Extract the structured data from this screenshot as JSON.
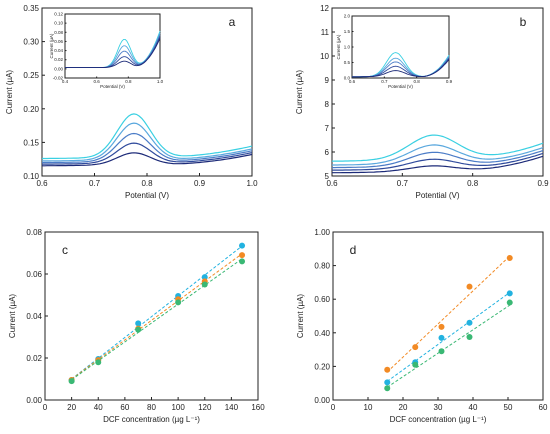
{
  "colors": {
    "axis": "#222222",
    "teal": "#1fb5a5",
    "cyan": "#22b2e0",
    "green": "#3ab874",
    "orange": "#f28a24",
    "voltammetry": [
      "#3ad0e2",
      "#5aa8de",
      "#4b7cc7",
      "#2f4a9c",
      "#1c2a78"
    ]
  },
  "chart_data": [
    {
      "id": "a",
      "panel_label": "a",
      "type": "line",
      "xlabel": "Potential (V)",
      "ylabel": "Current (µA)",
      "xlim": [
        0.6,
        1.0
      ],
      "ylim": [
        0.1,
        0.35
      ],
      "xticks": [
        "0.6",
        "0.7",
        "0.8",
        "0.9",
        "1.0"
      ],
      "yticks": [
        "0.10",
        "0.15",
        "0.20",
        "0.25",
        "0.30",
        "0.35"
      ],
      "baseline": {
        "y0": 0.12,
        "slope": 0.15,
        "curve": 0.45
      },
      "peak_center": 0.775,
      "peak_width": 0.045,
      "baseline_scales": [
        1.05,
        1.02,
        1.0,
        0.98,
        0.96
      ],
      "peak_heights": [
        0.065,
        0.055,
        0.042,
        0.03,
        0.018
      ],
      "inset": {
        "xlabel": "Potential (V)",
        "ylabel": "Current (µA)",
        "xlim": [
          0.4,
          1.0
        ],
        "ylim": [
          -0.02,
          0.12
        ],
        "xticks": [
          "0.4",
          "0.6",
          "0.8",
          "1.0"
        ],
        "yticks": [
          "-0.02",
          "0.00",
          "0.02",
          "0.04",
          "0.06",
          "0.08",
          "0.10",
          "0.12"
        ],
        "peak_center": 0.775,
        "peak_width": 0.06,
        "peak_heights": [
          0.062,
          0.048,
          0.036,
          0.024,
          0.014
        ],
        "tail": 0.08
      }
    },
    {
      "id": "b",
      "panel_label": "b",
      "type": "line",
      "xlabel": "Potential (V)",
      "ylabel": "Current (µA)",
      "xlim": [
        0.6,
        0.9
      ],
      "ylim": [
        5,
        12
      ],
      "xticks": [
        "0.6",
        "0.7",
        "0.8",
        "0.9"
      ],
      "yticks": [
        "5",
        "6",
        "7",
        "8",
        "9",
        "10",
        "11",
        "12"
      ],
      "baseline": {
        "y0": 5.35,
        "slope": 5.0,
        "curve": 35
      },
      "peak_center": 0.745,
      "peak_width": 0.05,
      "baseline_scales": [
        1.05,
        1.02,
        1.0,
        0.98,
        0.96
      ],
      "peak_heights": [
        1.05,
        0.8,
        0.6,
        0.42,
        0.25
      ],
      "inset": {
        "xlabel": "Potential (V)",
        "ylabel": "Current (µA)",
        "xlim": [
          0.6,
          0.9
        ],
        "ylim": [
          0.0,
          2.0
        ],
        "xticks": [
          "0.6",
          "0.7",
          "0.8",
          "0.9"
        ],
        "yticks": [
          "0.0",
          "0.5",
          "1.0",
          "1.5",
          "2.0"
        ],
        "peak_center": 0.735,
        "peak_width": 0.04,
        "peak_heights": [
          0.78,
          0.6,
          0.48,
          0.34,
          0.2
        ],
        "tail": 0.7
      }
    },
    {
      "id": "c",
      "panel_label": "c",
      "type": "scatter",
      "xlabel": "DCF concentration (µg L⁻¹)",
      "ylabel": "Current (µA)",
      "xlim": [
        0,
        160
      ],
      "ylim": [
        0.0,
        0.08
      ],
      "xticks": [
        "0",
        "20",
        "40",
        "60",
        "80",
        "100",
        "120",
        "140",
        "160"
      ],
      "yticks": [
        "0.00",
        "0.02",
        "0.04",
        "0.06",
        "0.08"
      ],
      "x": [
        20,
        40,
        70,
        100,
        120,
        148
      ],
      "series": [
        {
          "color": "cyan",
          "values": [
            0.0095,
            0.0195,
            0.0365,
            0.0495,
            0.0585,
            0.0735
          ]
        },
        {
          "color": "orange",
          "values": [
            0.0095,
            0.019,
            0.034,
            0.048,
            0.0565,
            0.069
          ]
        },
        {
          "color": "green",
          "values": [
            0.009,
            0.018,
            0.0335,
            0.0465,
            0.055,
            0.066
          ]
        }
      ]
    },
    {
      "id": "d",
      "panel_label": "d",
      "type": "scatter",
      "xlabel": "DCF concentration (µg L⁻¹)",
      "ylabel": "Current (µA)",
      "xlim": [
        0,
        60
      ],
      "ylim": [
        0.0,
        1.0
      ],
      "xticks": [
        "0",
        "10",
        "20",
        "30",
        "40",
        "50",
        "60"
      ],
      "yticks": [
        "0.00",
        "0.20",
        "0.40",
        "0.60",
        "0.80",
        "1.00"
      ],
      "x": [
        15.5,
        23.5,
        31,
        39,
        50.5
      ],
      "series": [
        {
          "color": "orange",
          "values": [
            0.18,
            0.315,
            0.435,
            0.675,
            0.845
          ]
        },
        {
          "color": "cyan",
          "values": [
            0.105,
            0.225,
            0.37,
            0.46,
            0.635
          ]
        },
        {
          "color": "green",
          "values": [
            0.07,
            0.21,
            0.29,
            0.375,
            0.58
          ]
        }
      ]
    }
  ]
}
